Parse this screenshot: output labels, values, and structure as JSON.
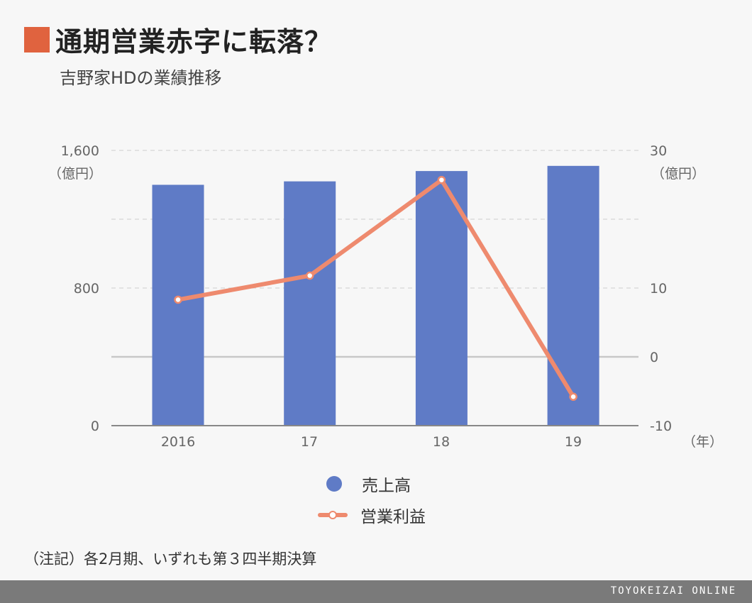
{
  "title": "通期営業赤字に転落？",
  "subtitle": "吉野家HDの業績推移",
  "left_axis": {
    "ticks": [
      "0",
      "800",
      "1,600"
    ],
    "unit": "（億円）"
  },
  "right_axis": {
    "ticks": [
      "-10",
      "0",
      "10",
      "30"
    ],
    "unit": "（億円）"
  },
  "x_axis": {
    "labels": [
      "2016",
      "17",
      "18",
      "19"
    ],
    "unit": "（年）"
  },
  "legend": {
    "bar": "売上高",
    "line": "営業利益"
  },
  "note": "（注記）各2月期、いずれも第３四半期決算",
  "brand": "TOYOKEIZAI ONLINE",
  "colors": {
    "title_square": "#e0633f",
    "bar": "#5f7bc6",
    "line": "#ee8a6e"
  },
  "chart_data": {
    "type": "bar+line",
    "categories": [
      "2016",
      "17",
      "18",
      "19"
    ],
    "series": [
      {
        "name": "売上高",
        "axis": "left",
        "type": "bar",
        "values": [
          1400,
          1420,
          1480,
          1510
        ]
      },
      {
        "name": "営業利益",
        "axis": "right",
        "type": "line",
        "values": [
          8.3,
          11.8,
          25.7,
          -5.8
        ]
      }
    ],
    "ylim_left": [
      0,
      1600
    ],
    "ylim_right": [
      -10,
      30
    ],
    "grid": true
  }
}
